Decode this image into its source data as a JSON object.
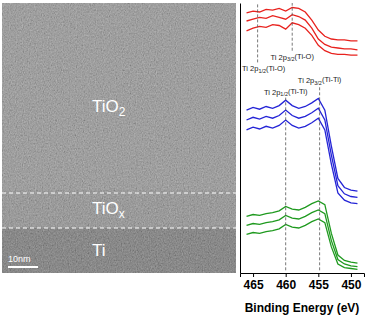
{
  "micrograph": {
    "labels": [
      "TiO2",
      "TiOx",
      "Ti"
    ],
    "scale_bar": "10nm"
  },
  "chart_data": {
    "type": "line",
    "xlabel": "Binding Energy (eV)",
    "x": [
      466,
      465,
      464,
      463,
      462,
      461,
      460,
      459,
      458,
      457,
      456,
      455,
      454,
      453,
      452,
      451,
      450,
      449
    ],
    "xlim": [
      467,
      448
    ],
    "xticks": [
      465,
      460,
      455,
      450
    ],
    "ylim": [
      0,
      30
    ],
    "tick_labels": "x",
    "series": [
      {
        "color": "#e8221e",
        "values": [
          28.9,
          29.1,
          29.0,
          29.3,
          29.2,
          29.4,
          29.1,
          29.5,
          29.4,
          29.0,
          28.1,
          27.0,
          26.3,
          26.0,
          25.9,
          25.9,
          25.8,
          25.8
        ]
      },
      {
        "color": "#e8221e",
        "values": [
          28.0,
          28.2,
          28.4,
          28.3,
          28.6,
          28.4,
          28.2,
          28.7,
          28.5,
          28.1,
          27.2,
          26.0,
          25.4,
          25.1,
          25.0,
          24.9,
          24.9,
          24.8
        ]
      },
      {
        "color": "#e8221e",
        "values": [
          26.9,
          27.2,
          27.4,
          27.3,
          27.6,
          27.5,
          27.1,
          27.8,
          27.6,
          27.2,
          26.4,
          25.3,
          24.7,
          24.4,
          24.3,
          24.3,
          24.2,
          24.2
        ]
      },
      {
        "color": "#2424d6",
        "values": [
          18.1,
          18.4,
          18.2,
          18.5,
          18.3,
          18.6,
          19.2,
          18.6,
          18.3,
          18.5,
          18.9,
          19.4,
          18.1,
          14.1,
          10.5,
          9.5,
          9.2,
          9.1
        ]
      },
      {
        "color": "#2424d6",
        "values": [
          17.0,
          17.3,
          17.1,
          17.4,
          17.2,
          17.5,
          18.1,
          17.5,
          17.2,
          17.4,
          17.8,
          18.3,
          17.0,
          13.1,
          9.7,
          8.8,
          8.5,
          8.4
        ]
      },
      {
        "color": "#2424d6",
        "values": [
          15.9,
          16.2,
          16.0,
          16.3,
          16.1,
          16.4,
          17.0,
          16.4,
          16.1,
          16.3,
          16.7,
          17.2,
          15.9,
          12.1,
          8.9,
          8.1,
          7.8,
          7.7
        ]
      },
      {
        "color": "#1f9a1f",
        "values": [
          6.3,
          6.5,
          6.4,
          6.6,
          6.7,
          6.9,
          7.4,
          7.1,
          7.0,
          7.3,
          7.7,
          8.0,
          7.6,
          4.4,
          2.0,
          1.4,
          1.2,
          1.1
        ]
      },
      {
        "color": "#1f9a1f",
        "values": [
          5.3,
          5.5,
          5.4,
          5.6,
          5.7,
          5.9,
          6.4,
          6.1,
          6.0,
          6.3,
          6.7,
          7.0,
          6.6,
          3.6,
          1.5,
          1.0,
          0.8,
          0.7
        ]
      },
      {
        "color": "#1f9a1f",
        "values": [
          4.3,
          4.5,
          4.4,
          4.6,
          4.7,
          4.9,
          5.4,
          5.1,
          5.0,
          5.3,
          5.7,
          6.0,
          5.6,
          2.9,
          1.0,
          0.6,
          0.5,
          0.4
        ]
      }
    ],
    "annotations": [
      {
        "text": "Ti 2p1/2(Ti-O)",
        "x": 464.3,
        "y": 22.7,
        "y_range": [
          23.4,
          30
        ]
      },
      {
        "text": "Ti 2p3/2(Ti-O)",
        "x": 459.0,
        "y": 24.0,
        "y_range": [
          24.7,
          30
        ]
      },
      {
        "text": "Ti 2p3/2(Ti-Ti)",
        "x": 454.8,
        "y": 21.4,
        "y_range": [
          0.3,
          20.8
        ]
      },
      {
        "text": "Ti 2p1/2(Ti-Ti)",
        "x": 460.0,
        "y": 20.1,
        "y_range": [
          0.3,
          19.5
        ]
      }
    ]
  }
}
